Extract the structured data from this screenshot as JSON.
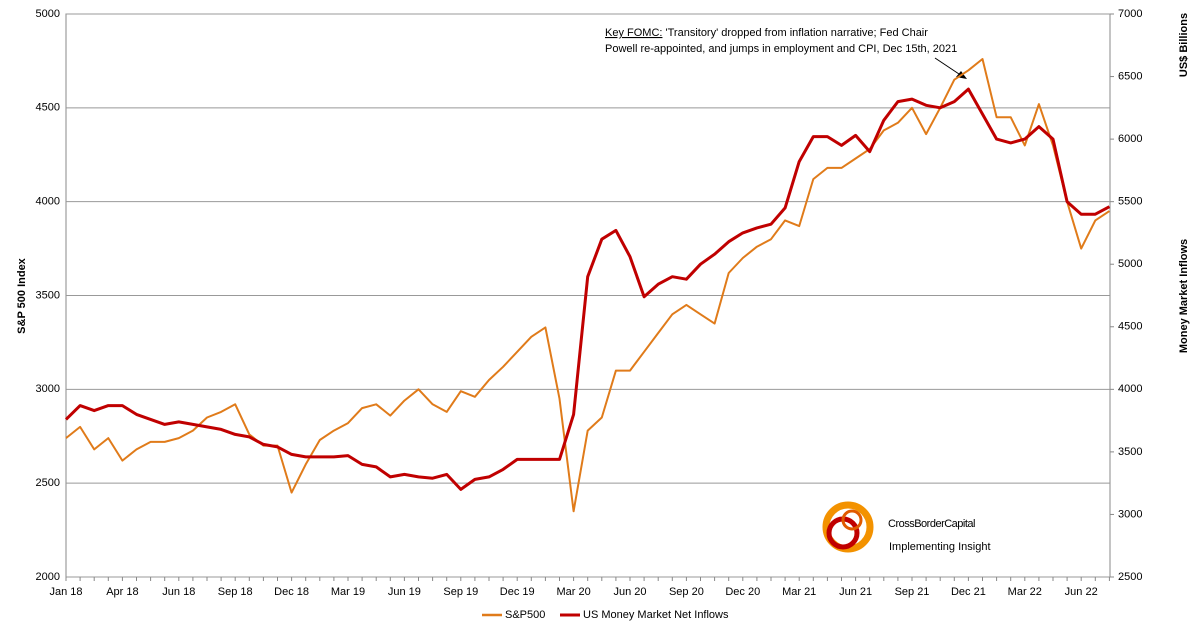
{
  "chart_data": {
    "type": "line",
    "y_label": "S&P 500 Index",
    "y2_label_top": "US$ Billions",
    "y2_label": "Money Market Inflows",
    "annotation": {
      "key": "Key FOMC:",
      "lines": [
        " 'Transitory' dropped from inflation narrative; Fed Chair",
        "Powell re-appointed, and jumps in employment and CPI, Dec 15th, 2021"
      ]
    },
    "logo": {
      "name": "CrossBorderCapital",
      "tagline": "Implementing Insight"
    },
    "categories": [
      "Jan 18",
      null,
      null,
      null,
      "Apr 18",
      null,
      null,
      null,
      "Jun 18",
      null,
      null,
      null,
      "Sep 18",
      null,
      null,
      null,
      "Dec 18",
      null,
      null,
      null,
      "Mar 19",
      null,
      null,
      null,
      "Jun 19",
      null,
      null,
      null,
      "Sep 19",
      null,
      null,
      null,
      "Dec 19",
      null,
      null,
      null,
      "Mar 20",
      null,
      null,
      null,
      "Jun 20",
      null,
      null,
      null,
      "Sep 20",
      null,
      null,
      null,
      "Dec 20",
      null,
      null,
      null,
      "Mar 21",
      null,
      null,
      null,
      "Jun 21",
      null,
      null,
      null,
      "Sep 21",
      null,
      null,
      null,
      "Dec 21",
      null,
      null,
      null,
      "Mar 22",
      null,
      null,
      null,
      "Jun 22",
      null,
      null
    ],
    "series": [
      {
        "name": "S&P500",
        "color": "#e07b1a",
        "values": [
          2740,
          2800,
          2680,
          2740,
          2620,
          2680,
          2720,
          2720,
          2740,
          2780,
          2850,
          2880,
          2920,
          2760,
          2700,
          2700,
          2450,
          2600,
          2730,
          2780,
          2820,
          2900,
          2920,
          2860,
          2940,
          3000,
          2920,
          2880,
          2990,
          2960,
          3050,
          3120,
          3200,
          3280,
          3330,
          2950,
          2350,
          2780,
          2850,
          3100,
          3100,
          3200,
          3300,
          3400,
          3450,
          3400,
          3350,
          3620,
          3700,
          3760,
          3800,
          3900,
          3870,
          4120,
          4180,
          4180,
          4230,
          4280,
          4380,
          4420,
          4500,
          4360,
          4500,
          4650,
          4700,
          4760,
          4450,
          4450,
          4300,
          4520,
          4300,
          4000,
          3750,
          3900,
          3950
        ]
      },
      {
        "name": "US Money Market Net Inflows",
        "color": "#c00000",
        "axis": "y2",
        "values": [
          3760,
          3870,
          3830,
          3870,
          3870,
          3800,
          3760,
          3720,
          3740,
          3720,
          3700,
          3680,
          3640,
          3620,
          3560,
          3540,
          3480,
          3460,
          3460,
          3460,
          3470,
          3400,
          3380,
          3300,
          3320,
          3300,
          3290,
          3320,
          3200,
          3280,
          3300,
          3360,
          3440,
          3440,
          3440,
          3440,
          3800,
          4900,
          5200,
          5270,
          5060,
          4740,
          4840,
          4900,
          4880,
          5000,
          5080,
          5180,
          5250,
          5290,
          5320,
          5450,
          5820,
          6020,
          6020,
          5950,
          6030,
          5900,
          6150,
          6300,
          6320,
          6270,
          6250,
          6300,
          6400,
          6200,
          6000,
          5970,
          6000,
          6100,
          6000,
          5500,
          5400,
          5400,
          5460
        ]
      }
    ],
    "ylim": [
      2000,
      5000
    ],
    "yticks": [
      2000,
      2500,
      3000,
      3500,
      4000,
      4500,
      5000
    ],
    "y2lim": [
      2500,
      7000
    ],
    "y2ticks": [
      2500,
      3000,
      3500,
      4000,
      4500,
      5000,
      5500,
      6000,
      6500,
      7000
    ],
    "grid": true
  }
}
